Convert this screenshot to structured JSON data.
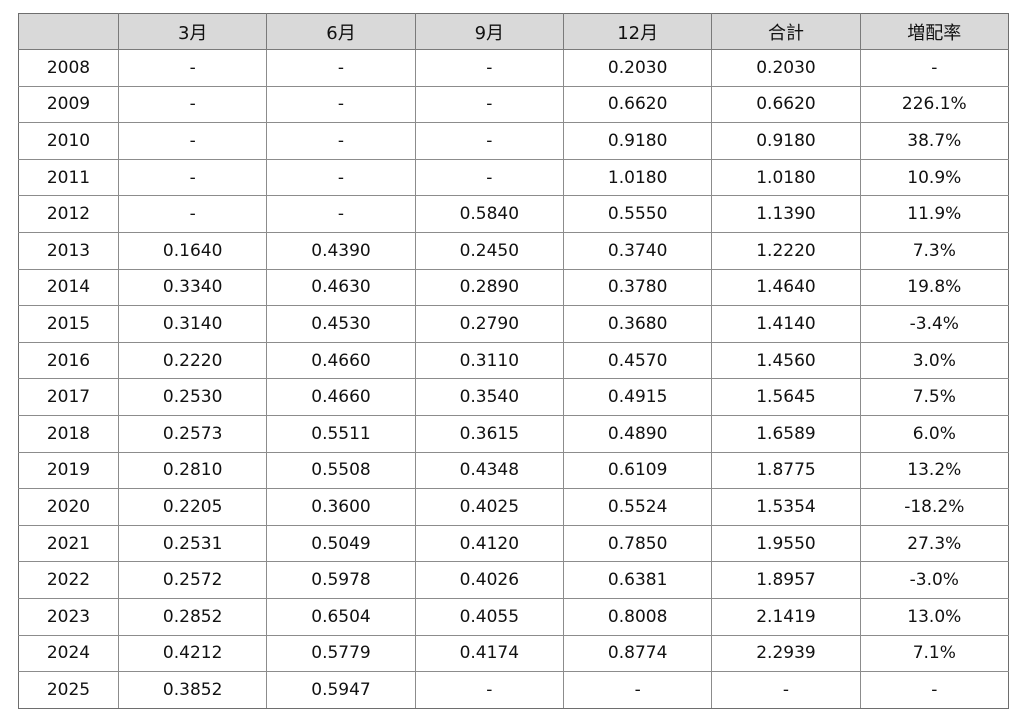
{
  "table": {
    "headers": [
      "",
      "3月",
      "6月",
      "9月",
      "12月",
      "合計",
      "増配率"
    ],
    "rows": [
      [
        "2008",
        "-",
        "-",
        "-",
        "0.2030",
        "0.2030",
        "-"
      ],
      [
        "2009",
        "-",
        "-",
        "-",
        "0.6620",
        "0.6620",
        "226.1%"
      ],
      [
        "2010",
        "-",
        "-",
        "-",
        "0.9180",
        "0.9180",
        "38.7%"
      ],
      [
        "2011",
        "-",
        "-",
        "-",
        "1.0180",
        "1.0180",
        "10.9%"
      ],
      [
        "2012",
        "-",
        "-",
        "0.5840",
        "0.5550",
        "1.1390",
        "11.9%"
      ],
      [
        "2013",
        "0.1640",
        "0.4390",
        "0.2450",
        "0.3740",
        "1.2220",
        "7.3%"
      ],
      [
        "2014",
        "0.3340",
        "0.4630",
        "0.2890",
        "0.3780",
        "1.4640",
        "19.8%"
      ],
      [
        "2015",
        "0.3140",
        "0.4530",
        "0.2790",
        "0.3680",
        "1.4140",
        "-3.4%"
      ],
      [
        "2016",
        "0.2220",
        "0.4660",
        "0.3110",
        "0.4570",
        "1.4560",
        "3.0%"
      ],
      [
        "2017",
        "0.2530",
        "0.4660",
        "0.3540",
        "0.4915",
        "1.5645",
        "7.5%"
      ],
      [
        "2018",
        "0.2573",
        "0.5511",
        "0.3615",
        "0.4890",
        "1.6589",
        "6.0%"
      ],
      [
        "2019",
        "0.2810",
        "0.5508",
        "0.4348",
        "0.6109",
        "1.8775",
        "13.2%"
      ],
      [
        "2020",
        "0.2205",
        "0.3600",
        "0.4025",
        "0.5524",
        "1.5354",
        "-18.2%"
      ],
      [
        "2021",
        "0.2531",
        "0.5049",
        "0.4120",
        "0.7850",
        "1.9550",
        "27.3%"
      ],
      [
        "2022",
        "0.2572",
        "0.5978",
        "0.4026",
        "0.6381",
        "1.8957",
        "-3.0%"
      ],
      [
        "2023",
        "0.2852",
        "0.6504",
        "0.4055",
        "0.8008",
        "2.1419",
        "13.0%"
      ],
      [
        "2024",
        "0.4212",
        "0.5779",
        "0.4174",
        "0.8774",
        "2.2939",
        "7.1%"
      ],
      [
        "2025",
        "0.3852",
        "0.5947",
        "-",
        "-",
        "-",
        "-"
      ]
    ]
  }
}
